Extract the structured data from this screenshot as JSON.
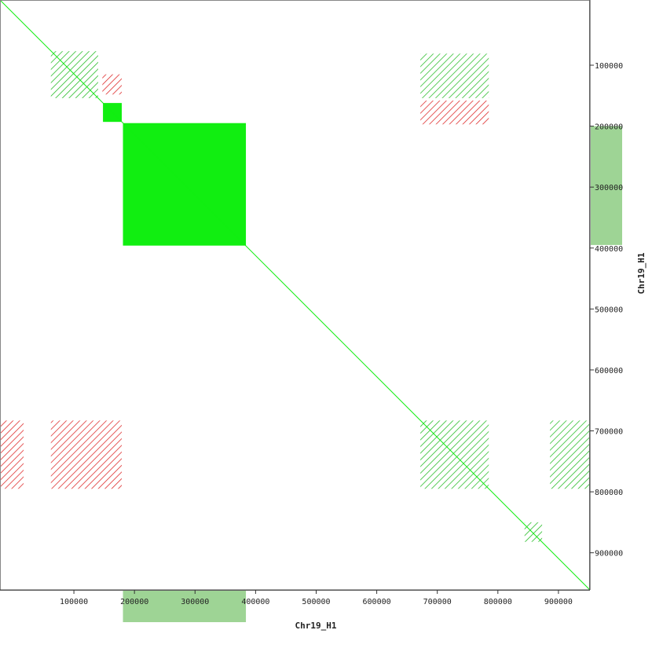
{
  "chart_data": {
    "type": "dotplot",
    "x_label": "Chr19_H1",
    "y_label": "Chr19_H1",
    "xlim": [
      -22000,
      952000
    ],
    "ylim": [
      -7000,
      961000
    ],
    "xticks": [
      100000,
      200000,
      300000,
      400000,
      500000,
      600000,
      700000,
      800000,
      900000
    ],
    "yticks": [
      100000,
      200000,
      300000,
      400000,
      500000,
      600000,
      700000,
      800000,
      900000
    ],
    "highlight": {
      "x": [
        181000,
        384000
      ],
      "y": [
        200000,
        395000
      ],
      "color": "#9ed495"
    },
    "diagonal": {
      "x": [
        -22000,
        952000
      ],
      "y": [
        -7000,
        961000
      ],
      "color": "#11ee11"
    },
    "blocks": [
      {
        "x": [
          181000,
          384000
        ],
        "y": [
          195000,
          396000
        ],
        "color": "#11ee11"
      },
      {
        "x": [
          148000,
          179000
        ],
        "y": [
          162000,
          193000
        ],
        "color": "#11ee11"
      }
    ],
    "regions": [
      {
        "x": [
          672000,
          785000
        ],
        "y": [
          683000,
          795000
        ],
        "color": "#22bb22"
      },
      {
        "x": [
          672000,
          785000
        ],
        "y": [
          158000,
          197000
        ],
        "color": "#dd2222"
      },
      {
        "x": [
          672000,
          785000
        ],
        "y": [
          81000,
          154000
        ],
        "color": "#22bb22"
      },
      {
        "x": [
          62000,
          179000
        ],
        "y": [
          683000,
          795000
        ],
        "color": "#dd2222"
      },
      {
        "x": [
          62000,
          140000
        ],
        "y": [
          77000,
          154000
        ],
        "color": "#22bb22"
      },
      {
        "x": [
          147000,
          179000
        ],
        "y": [
          115000,
          148000
        ],
        "color": "#dd2222"
      },
      {
        "x": [
          844000,
          873000
        ],
        "y": [
          850000,
          882000
        ],
        "color": "#22bb22"
      },
      {
        "x": [
          -22000,
          17000
        ],
        "y": [
          683000,
          795000
        ],
        "color": "#dd2222"
      },
      {
        "x": [
          886000,
          952000
        ],
        "y": [
          683000,
          795000
        ],
        "color": "#22bb22"
      }
    ]
  }
}
